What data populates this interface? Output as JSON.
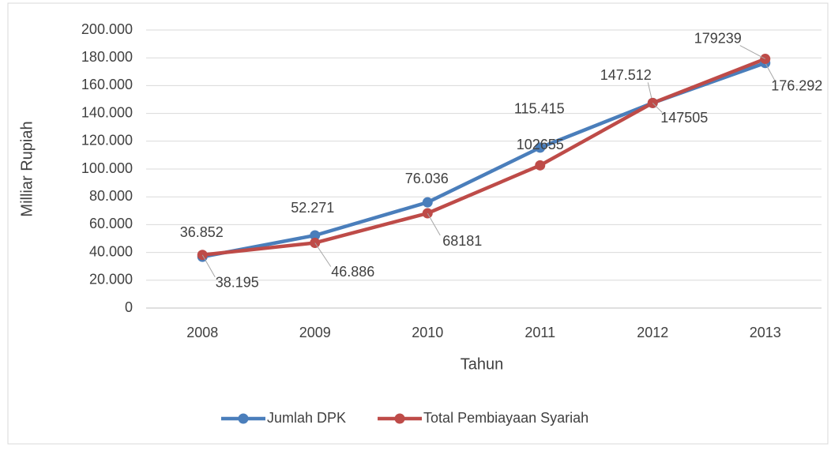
{
  "chart_data": {
    "type": "line",
    "y_label": "Milliar Rupiah",
    "x_label": "Tahun",
    "categories": [
      "2008",
      "2009",
      "2010",
      "2011",
      "2012",
      "2013"
    ],
    "series": [
      {
        "name": "Jumlah DPK",
        "color": "#4a7ebb",
        "values": [
          36852,
          52271,
          76036,
          115415,
          147512,
          176292
        ],
        "value_labels": [
          "36.852",
          "52.271",
          "76.036",
          "115.415",
          "147.512",
          "176.292"
        ]
      },
      {
        "name": "Total Pembiayaan Syariah",
        "color": "#be4b48",
        "values": [
          38195,
          46886,
          68181,
          102655,
          147505,
          179239
        ],
        "value_labels": [
          "38.195",
          "46.886",
          "68181",
          "102655",
          "147505",
          "179239"
        ]
      }
    ],
    "ylim": [
      0,
      200000
    ],
    "yticks": [
      0,
      {
        "value": 20000,
        "label": "20.000"
      },
      {
        "value": 40000,
        "label": "40.000"
      },
      {
        "value": 60000,
        "label": "60.000"
      },
      {
        "value": 80000,
        "label": "80.000"
      },
      {
        "value": 100000,
        "label": "100.000"
      },
      {
        "value": 120000,
        "label": "120.000"
      },
      {
        "value": 140000,
        "label": "140.000"
      },
      {
        "value": 160000,
        "label": "160.000"
      },
      {
        "value": 180000,
        "label": "180.000"
      },
      {
        "value": 200000,
        "label": "200.000"
      }
    ],
    "grid": true,
    "legend": "bottom"
  }
}
